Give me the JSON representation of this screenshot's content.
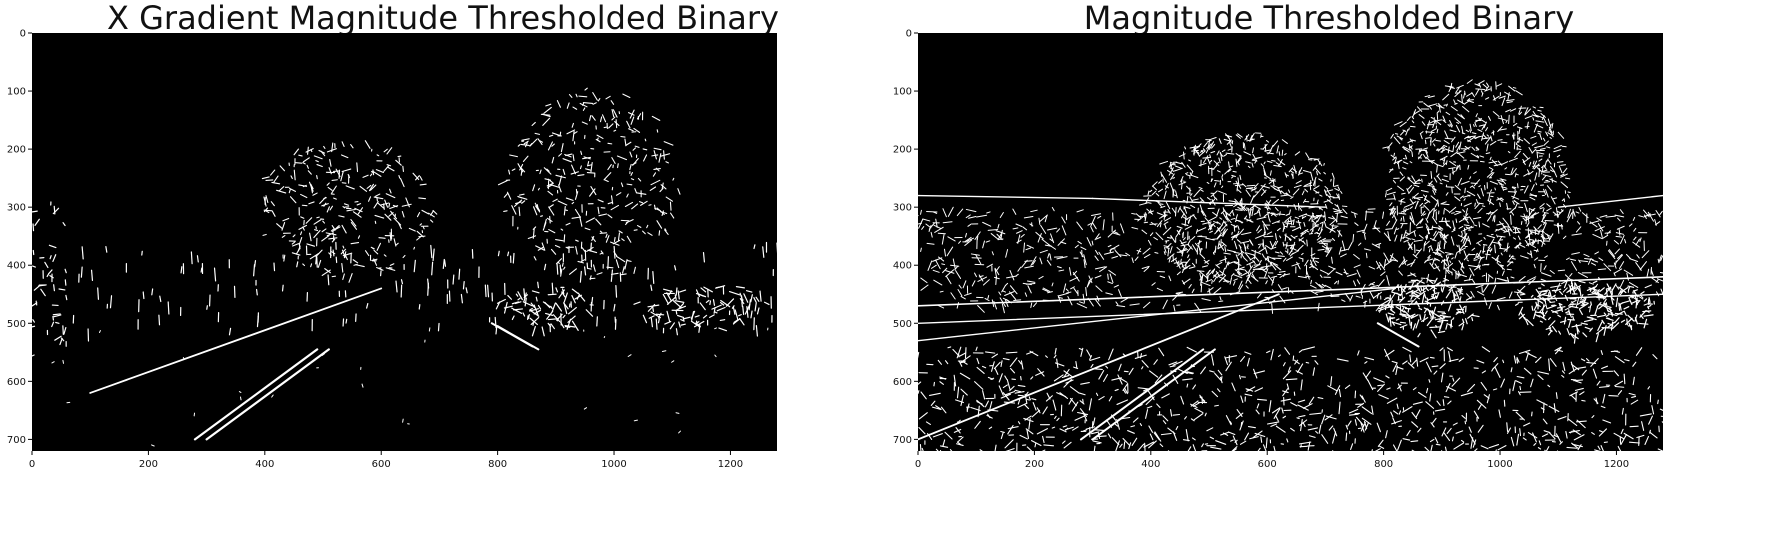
{
  "panels": [
    {
      "title": "X Gradient Magnitude Thresholded Binary",
      "x_ticks": [
        "0",
        "200",
        "400",
        "600",
        "800",
        "1000",
        "1200"
      ],
      "y_ticks": [
        "0",
        "100",
        "200",
        "300",
        "400",
        "500",
        "600",
        "700"
      ]
    },
    {
      "title": "Magnitude Thresholded Binary",
      "x_ticks": [
        "0",
        "200",
        "400",
        "600",
        "800",
        "1000",
        "1200"
      ],
      "y_ticks": [
        "0",
        "100",
        "200",
        "300",
        "400",
        "500",
        "600",
        "700"
      ]
    }
  ],
  "image": {
    "width": 1280,
    "height": 720,
    "background": "#000000",
    "edge_color": "#ffffff"
  }
}
